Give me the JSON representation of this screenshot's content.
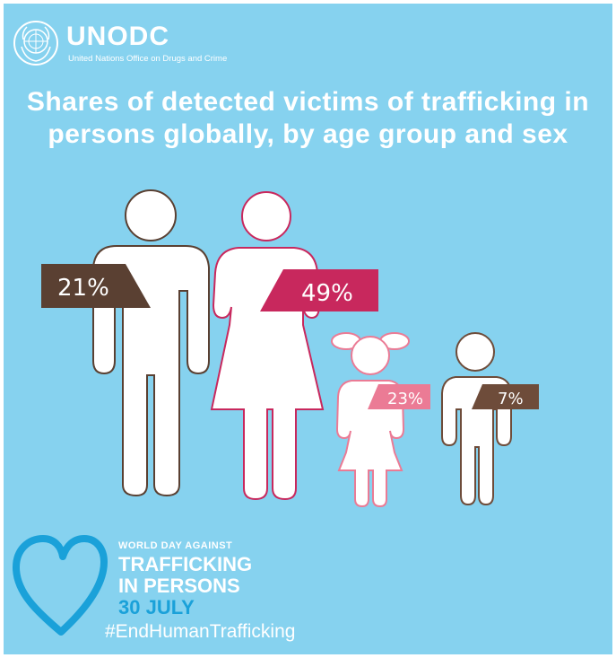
{
  "header": {
    "org_name": "UNODC",
    "org_full_name": "United Nations Office on Drugs and Crime"
  },
  "chart_data": {
    "type": "pictogram",
    "title_lines": [
      "Shares of detected victims of trafficking in",
      "persons globally, by age group and sex"
    ],
    "categories": [
      "Men",
      "Women",
      "Girls",
      "Boys"
    ],
    "values": [
      21,
      49,
      23,
      7
    ],
    "labels": [
      "21%",
      "49%",
      "23%",
      "7%"
    ],
    "unit": "%",
    "colors": {
      "men": "#5a4032",
      "women": "#c8285d",
      "girls": "#eb7b95",
      "boys": "#6e4c3a",
      "background": "#86d2ef"
    }
  },
  "footer": {
    "line1": "WORLD DAY AGAINST",
    "line2": "TRAFFICKING",
    "line3": "IN PERSONS",
    "date": "30 JULY",
    "hashtag": "#EndHumanTrafficking",
    "heart_color": "#1aa1d9"
  }
}
